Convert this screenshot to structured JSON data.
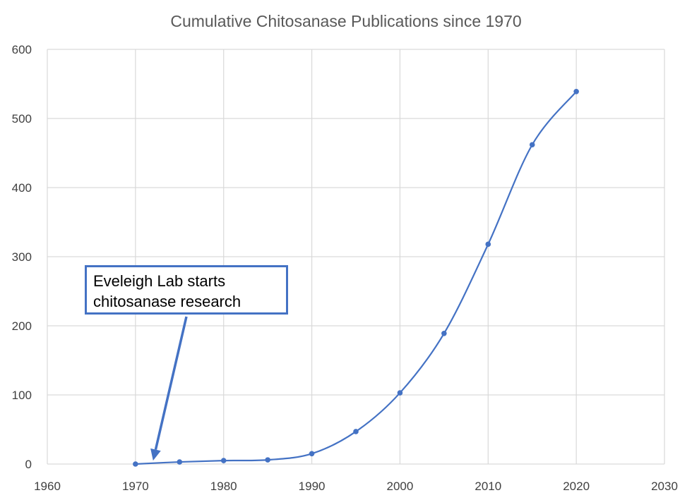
{
  "chart_data": {
    "type": "line",
    "title": "Cumulative Chitosanase Publications since 1970",
    "xlabel": "",
    "ylabel": "",
    "xlim": [
      1960,
      2030
    ],
    "ylim": [
      0,
      600
    ],
    "x_ticks": [
      1960,
      1970,
      1980,
      1990,
      2000,
      2010,
      2020,
      2030
    ],
    "y_ticks": [
      0,
      100,
      200,
      300,
      400,
      500,
      600
    ],
    "grid": true,
    "smooth": true,
    "legend": "none",
    "series": [
      {
        "x": [
          1970,
          1975,
          1980,
          1985,
          1990,
          1995,
          2000,
          2005,
          2010,
          2015,
          2020
        ],
        "y": [
          0,
          3,
          5,
          6,
          15,
          47,
          103,
          189,
          318,
          462,
          539
        ],
        "color": "#4472c4"
      }
    ],
    "annotations": [
      {
        "lines": [
          "Eveleigh Lab starts",
          "chitosanase research"
        ],
        "arrow_to": [
          1972,
          5
        ]
      }
    ]
  }
}
